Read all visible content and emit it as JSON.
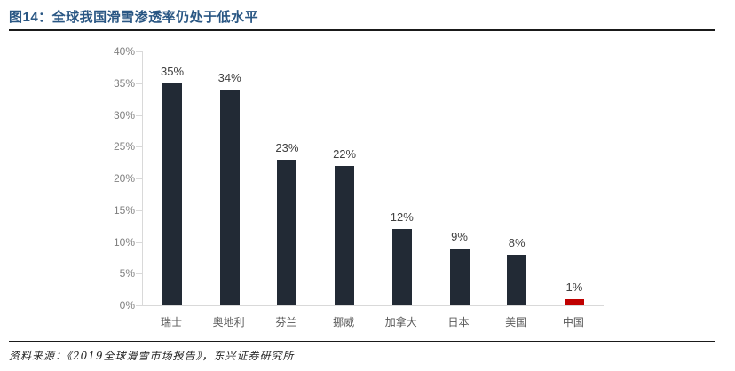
{
  "header": {
    "title": "图14：全球我国滑雪渗透率仍处于低水平"
  },
  "footer": {
    "source": "资料来源：《2019全球滑雪市场报告》，东兴证券研究所"
  },
  "colors": {
    "title": "#2A5784",
    "rule": "#1A1A1A",
    "bar_default": "#222A35",
    "bar_highlight": "#C00000",
    "axis_line": "#D9D9D9",
    "y_tick_label": "#808080",
    "category_label": "#595959",
    "value_label": "#404040"
  },
  "chart_data": {
    "type": "bar",
    "title": "图14：全球我国滑雪渗透率仍处于低水平",
    "categories": [
      "瑞士",
      "奥地利",
      "芬兰",
      "挪威",
      "加拿大",
      "日本",
      "美国",
      "中国"
    ],
    "values": [
      35,
      34,
      23,
      22,
      12,
      9,
      8,
      1
    ],
    "value_labels": [
      "35%",
      "34%",
      "23%",
      "22%",
      "12%",
      "9%",
      "8%",
      "1%"
    ],
    "highlight_index": 7,
    "xlabel": "",
    "ylabel": "",
    "ylim": [
      0,
      40
    ],
    "y_tick_step": 5,
    "y_tick_labels": [
      "0%",
      "5%",
      "10%",
      "15%",
      "20%",
      "25%",
      "30%",
      "35%",
      "40%"
    ],
    "grid": "off",
    "legend": "none"
  }
}
